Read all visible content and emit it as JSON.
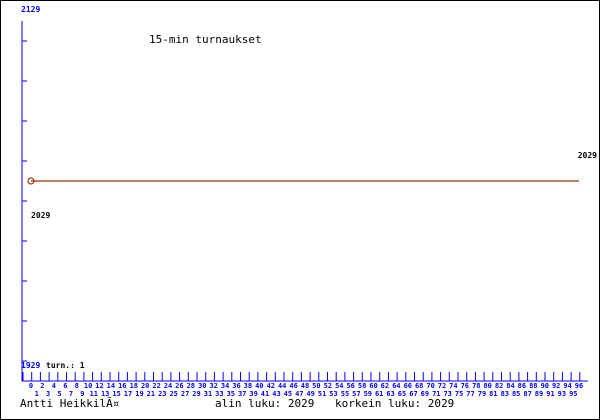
{
  "chart_data": {
    "type": "line",
    "title": "15-min turnaukset",
    "ylim": [
      1929,
      2129
    ],
    "y_top_label": "2129",
    "y_bottom_label": "1929",
    "legend_label": "turn.: 1",
    "x_tick_labels_range": [
      0,
      96
    ],
    "x": [
      0,
      96
    ],
    "values": [
      2029,
      2029
    ],
    "point_labels": [
      "2029",
      "2029"
    ],
    "grid": false,
    "colors": {
      "axis": "#0000ff",
      "series": "#993300",
      "text": "#000000"
    }
  },
  "footer": {
    "author": "Antti HeikkilÃ¤",
    "min_label": "alin luku: 2029",
    "max_label": "korkein luku: 2029"
  }
}
